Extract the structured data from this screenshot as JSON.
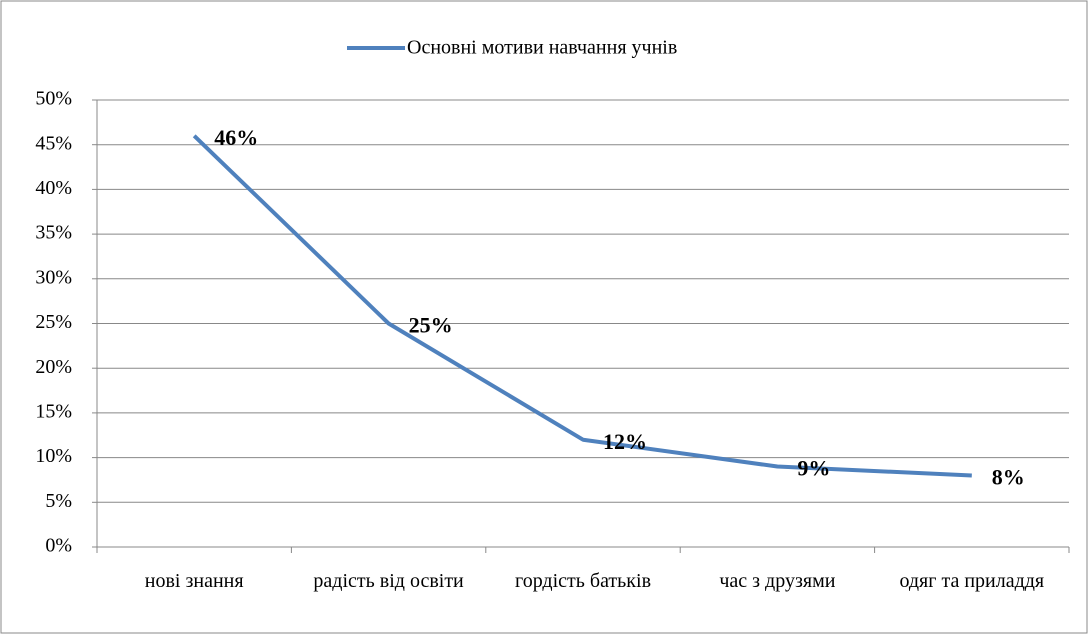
{
  "chart_data": {
    "type": "line",
    "categories": [
      "нові знання",
      "радість від освіти",
      "гордість батьків",
      "час з друзями",
      "одяг та приладдя"
    ],
    "series": [
      {
        "name": "Основні мотиви навчання учнів",
        "color": "#4f81bd",
        "values": [
          46,
          25,
          12,
          9,
          8
        ],
        "value_labels": [
          "46%",
          "25%",
          "12%",
          "9%",
          "8%"
        ]
      }
    ],
    "ylim": [
      0,
      50
    ],
    "yticks": [
      {
        "value": 0,
        "label": "0%"
      },
      {
        "value": 5,
        "label": "5%"
      },
      {
        "value": 10,
        "label": "10%"
      },
      {
        "value": 15,
        "label": "15%"
      },
      {
        "value": 20,
        "label": "20%"
      },
      {
        "value": 25,
        "label": "25%"
      },
      {
        "value": 30,
        "label": "30%"
      },
      {
        "value": 35,
        "label": "35%"
      },
      {
        "value": 40,
        "label": "40%"
      },
      {
        "value": 45,
        "label": "45%"
      },
      {
        "value": 50,
        "label": "50%"
      }
    ],
    "grid": true,
    "legend": "top"
  }
}
